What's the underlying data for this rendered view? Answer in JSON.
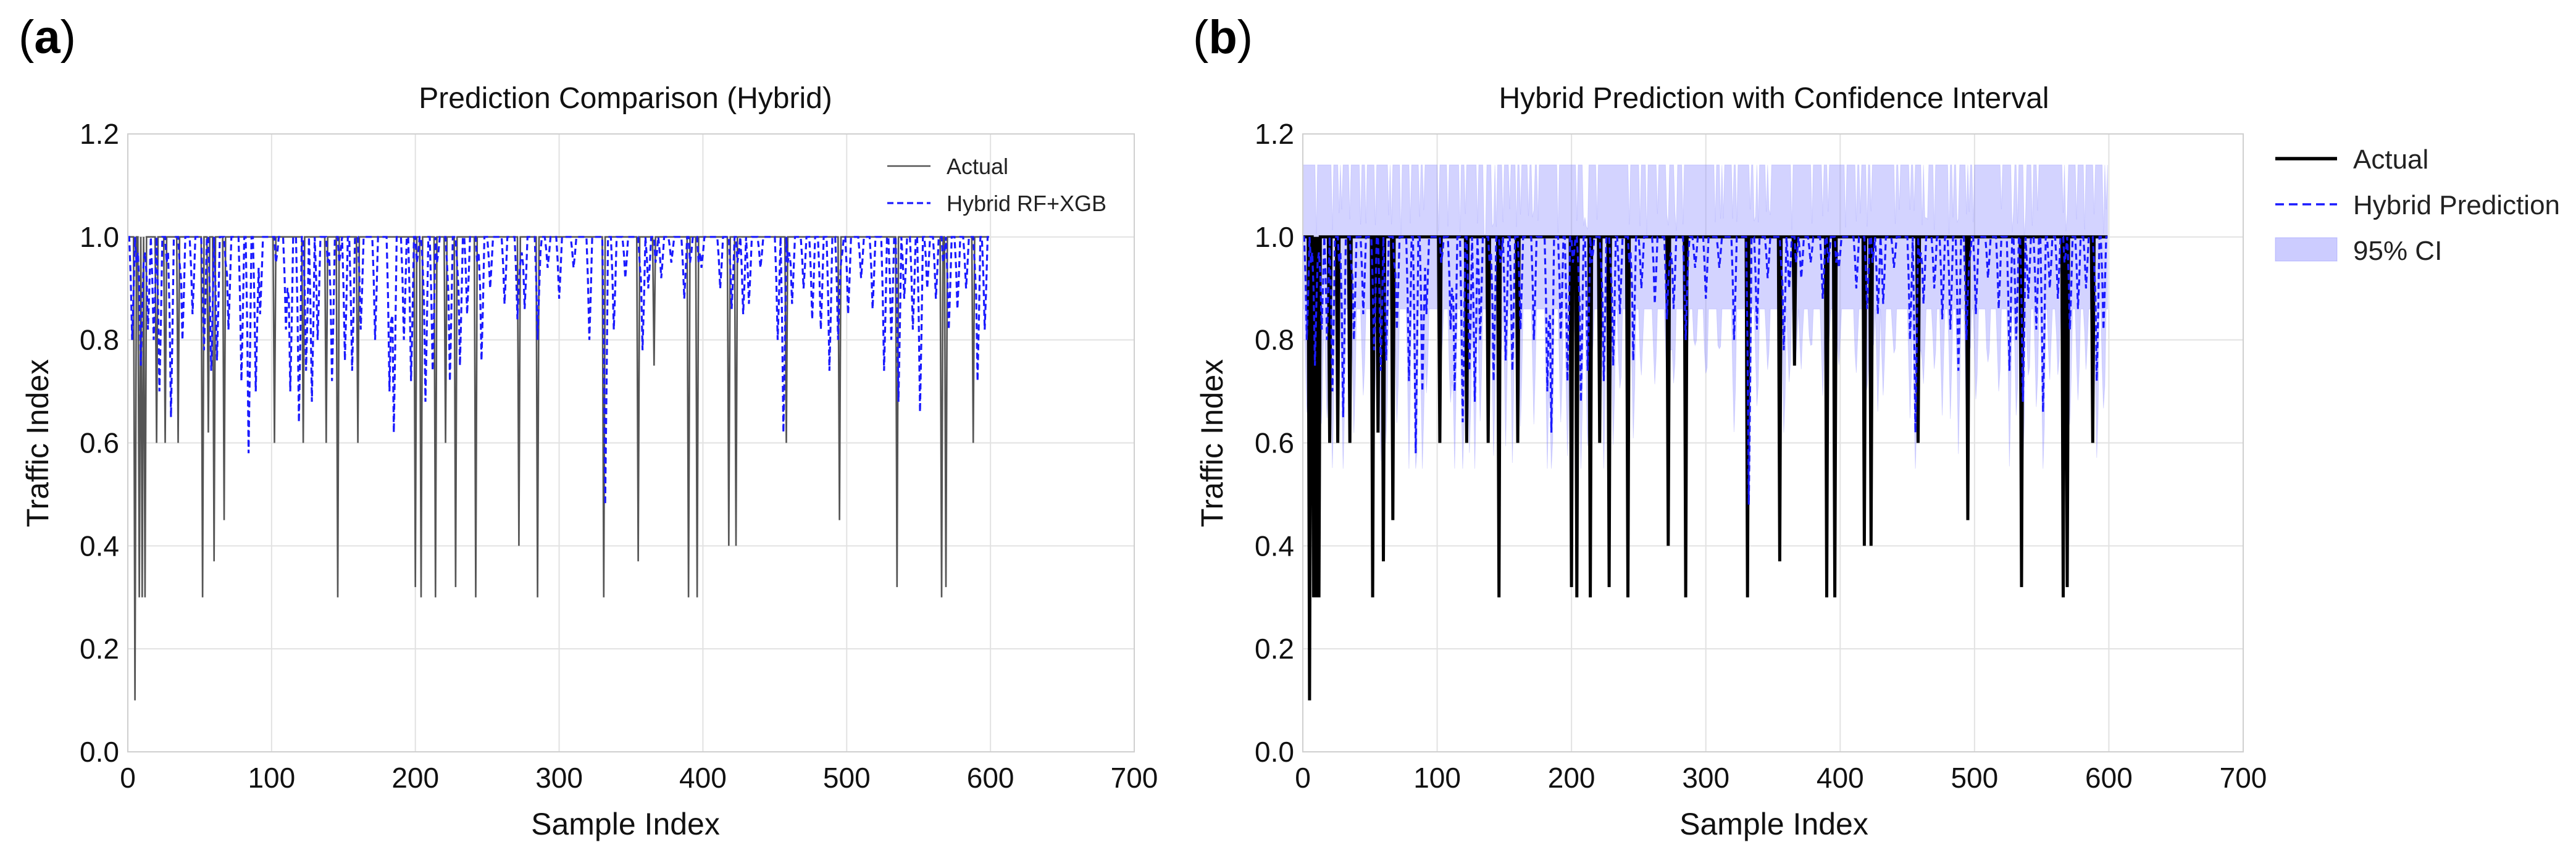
{
  "panels": [
    {
      "letter": "a",
      "chart": {
        "type": "line",
        "title": "Prediction Comparison (Hybrid)",
        "xlabel": "Sample Index",
        "ylabel": "Traffic Index",
        "xlim": [
          0,
          700
        ],
        "ylim": [
          0,
          1.2
        ],
        "xticks": [
          0,
          100,
          200,
          300,
          400,
          500,
          600,
          700
        ],
        "yticks": [
          0.0,
          0.2,
          0.4,
          0.6,
          0.8,
          1.0,
          1.2
        ],
        "xtick_labels": [
          "0",
          "100",
          "200",
          "300",
          "400",
          "500",
          "600",
          "700"
        ],
        "ytick_labels": [
          "0.0",
          "0.2",
          "0.4",
          "0.6",
          "0.8",
          "1.0",
          "1.2"
        ],
        "grid": true,
        "legend_position": "top-right",
        "series": [
          {
            "name": "Actual",
            "style": "solid",
            "color": "#555555",
            "role": "actual"
          },
          {
            "name": "Hybrid RF+XGB",
            "style": "dashed",
            "color": "#1a1aff",
            "role": "prediction"
          }
        ],
        "show_ci": false
      }
    },
    {
      "letter": "b",
      "chart": {
        "type": "line",
        "title": "Hybrid Prediction with Confidence Interval",
        "xlabel": "Sample Index",
        "ylabel": "Traffic Index",
        "xlim": [
          0,
          700
        ],
        "ylim": [
          0,
          1.2
        ],
        "xticks": [
          0,
          100,
          200,
          300,
          400,
          500,
          600,
          700
        ],
        "yticks": [
          0.0,
          0.2,
          0.4,
          0.6,
          0.8,
          1.0,
          1.2
        ],
        "xtick_labels": [
          "0",
          "100",
          "200",
          "300",
          "400",
          "500",
          "600",
          "700"
        ],
        "ytick_labels": [
          "0.0",
          "0.2",
          "0.4",
          "0.6",
          "0.8",
          "1.0",
          "1.2"
        ],
        "grid": true,
        "legend_position": "outside-right",
        "series": [
          {
            "name": "Actual",
            "style": "solid",
            "color": "#000000",
            "role": "actual"
          },
          {
            "name": "Hybrid Prediction",
            "style": "dashed",
            "color": "#1a1aff",
            "role": "prediction"
          },
          {
            "name": "95% CI",
            "style": "band",
            "color": "#8080ff",
            "role": "ci"
          }
        ],
        "show_ci": true
      }
    }
  ],
  "chart_data": {
    "type": "line",
    "n_samples": 600,
    "x_range": [
      0,
      599
    ],
    "baseline": 1.0,
    "actual_dips": [
      [
        5,
        0.1
      ],
      [
        8,
        0.3
      ],
      [
        10,
        0.3
      ],
      [
        12,
        0.3
      ],
      [
        20,
        0.6
      ],
      [
        26,
        0.6
      ],
      [
        35,
        0.6
      ],
      [
        52,
        0.3
      ],
      [
        56,
        0.62
      ],
      [
        60,
        0.37
      ],
      [
        67,
        0.45
      ],
      [
        102,
        0.6
      ],
      [
        122,
        0.6
      ],
      [
        138,
        0.6
      ],
      [
        146,
        0.3
      ],
      [
        160,
        0.6
      ],
      [
        200,
        0.32
      ],
      [
        204,
        0.3
      ],
      [
        214,
        0.3
      ],
      [
        221,
        0.6
      ],
      [
        228,
        0.32
      ],
      [
        242,
        0.3
      ],
      [
        272,
        0.4
      ],
      [
        285,
        0.3
      ],
      [
        331,
        0.3
      ],
      [
        355,
        0.37
      ],
      [
        366,
        0.75
      ],
      [
        390,
        0.3
      ],
      [
        396,
        0.3
      ],
      [
        418,
        0.4
      ],
      [
        423,
        0.4
      ],
      [
        458,
        0.6
      ],
      [
        495,
        0.45
      ],
      [
        535,
        0.32
      ],
      [
        566,
        0.3
      ],
      [
        569,
        0.32
      ],
      [
        588,
        0.6
      ]
    ],
    "prediction": {
      "baseline": 1.0,
      "dips": [
        [
          3,
          0.8
        ],
        [
          9,
          0.75
        ],
        [
          14,
          0.82
        ],
        [
          18,
          0.8
        ],
        [
          22,
          0.7
        ],
        [
          30,
          0.65
        ],
        [
          38,
          0.8
        ],
        [
          45,
          0.85
        ],
        [
          53,
          0.78
        ],
        [
          58,
          0.74
        ],
        [
          62,
          0.76
        ],
        [
          70,
          0.82
        ],
        [
          79,
          0.72
        ],
        [
          84,
          0.58
        ],
        [
          89,
          0.7
        ],
        [
          92,
          0.85
        ],
        [
          110,
          0.82
        ],
        [
          113,
          0.7
        ],
        [
          119,
          0.64
        ],
        [
          124,
          0.74
        ],
        [
          128,
          0.68
        ],
        [
          132,
          0.8
        ],
        [
          142,
          0.72
        ],
        [
          151,
          0.76
        ],
        [
          156,
          0.74
        ],
        [
          162,
          0.82
        ],
        [
          172,
          0.8
        ],
        [
          182,
          0.7
        ],
        [
          185,
          0.62
        ],
        [
          192,
          0.8
        ],
        [
          197,
          0.72
        ],
        [
          207,
          0.68
        ],
        [
          212,
          0.74
        ],
        [
          224,
          0.72
        ],
        [
          231,
          0.75
        ],
        [
          236,
          0.85
        ],
        [
          246,
          0.76
        ],
        [
          252,
          0.9
        ],
        [
          262,
          0.87
        ],
        [
          271,
          0.84
        ],
        [
          276,
          0.86
        ],
        [
          285,
          0.8
        ],
        [
          292,
          0.94
        ],
        [
          300,
          0.88
        ],
        [
          310,
          0.94
        ],
        [
          321,
          0.8
        ],
        [
          332,
          0.48
        ],
        [
          338,
          0.82
        ],
        [
          346,
          0.92
        ],
        [
          358,
          0.78
        ],
        [
          362,
          0.9
        ],
        [
          371,
          0.92
        ],
        [
          378,
          0.95
        ],
        [
          387,
          0.88
        ],
        [
          399,
          0.94
        ],
        [
          412,
          0.9
        ],
        [
          420,
          0.86
        ],
        [
          428,
          0.85
        ],
        [
          432,
          0.87
        ],
        [
          440,
          0.94
        ],
        [
          452,
          0.8
        ],
        [
          456,
          0.62
        ],
        [
          462,
          0.87
        ],
        [
          470,
          0.9
        ],
        [
          476,
          0.84
        ],
        [
          482,
          0.82
        ],
        [
          488,
          0.74
        ],
        [
          494,
          0.8
        ],
        [
          501,
          0.85
        ],
        [
          510,
          0.92
        ],
        [
          518,
          0.86
        ],
        [
          526,
          0.74
        ],
        [
          531,
          0.8
        ],
        [
          536,
          0.68
        ],
        [
          540,
          0.88
        ],
        [
          546,
          0.82
        ],
        [
          551,
          0.66
        ],
        [
          556,
          0.9
        ],
        [
          562,
          0.88
        ],
        [
          571,
          0.82
        ],
        [
          577,
          0.86
        ],
        [
          583,
          0.9
        ],
        [
          591,
          0.72
        ],
        [
          596,
          0.82
        ]
      ]
    },
    "ci": {
      "upper_max": 1.14,
      "upper_typical": 1.14,
      "lower_typical": 0.86,
      "lower_min": 0.55,
      "notes": "upper bound flickers between 1.0 and 1.14; lower bound mostly ~0.86, dropping at prediction dips"
    }
  }
}
